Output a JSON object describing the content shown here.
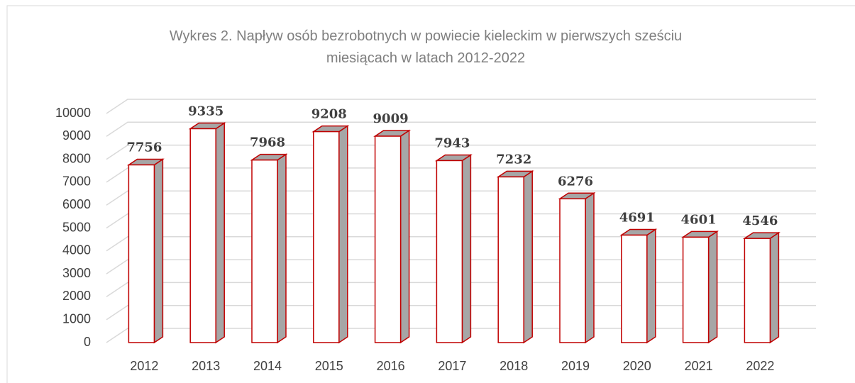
{
  "chart_data": {
    "type": "bar3d",
    "title": "Wykres 2. Napływ osób bezrobotnych w powiecie kieleckim w pierwszych sześciu miesiącach w latach 2012-2022",
    "categories": [
      "2012",
      "2013",
      "2014",
      "2015",
      "2016",
      "2017",
      "2018",
      "2019",
      "2020",
      "2021",
      "2022"
    ],
    "values": [
      7756,
      9335,
      7968,
      9208,
      9009,
      7943,
      7232,
      6276,
      4691,
      4601,
      4546
    ],
    "color": "#ffffff",
    "edge_color": "#c00000",
    "side_color": "#a6a6a6",
    "ylim": [
      0,
      10000
    ],
    "yticks": [
      0,
      1000,
      2000,
      3000,
      4000,
      5000,
      6000,
      7000,
      8000,
      9000,
      10000
    ],
    "grid": true
  }
}
